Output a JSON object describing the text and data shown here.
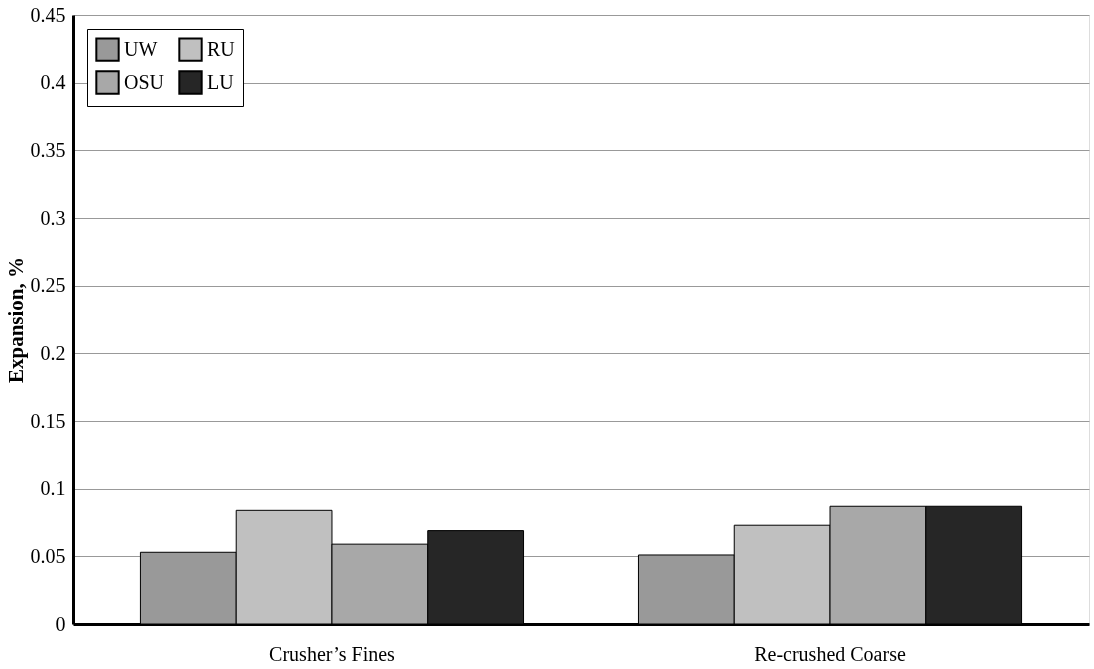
{
  "chart_data": {
    "type": "bar",
    "ylabel": "Expansion, %",
    "categories": [
      "Crusher’s Fines",
      "Re-crushed Coarse"
    ],
    "series": [
      {
        "name": "UW",
        "color": "#999999",
        "values": [
          0.053,
          0.051
        ]
      },
      {
        "name": "RU",
        "color": "#c0c0c0",
        "values": [
          0.084,
          0.073
        ]
      },
      {
        "name": "OSU",
        "color": "#a8a8a8",
        "values": [
          0.059,
          0.087
        ]
      },
      {
        "name": "LU",
        "color": "#262626",
        "values": [
          0.069,
          0.087
        ]
      }
    ],
    "ylim": [
      0,
      0.45
    ],
    "yticks": [
      0,
      0.05,
      0.1,
      0.15,
      0.2,
      0.25,
      0.3,
      0.35,
      0.4,
      0.45
    ],
    "grid": "y",
    "legend": "top left"
  }
}
